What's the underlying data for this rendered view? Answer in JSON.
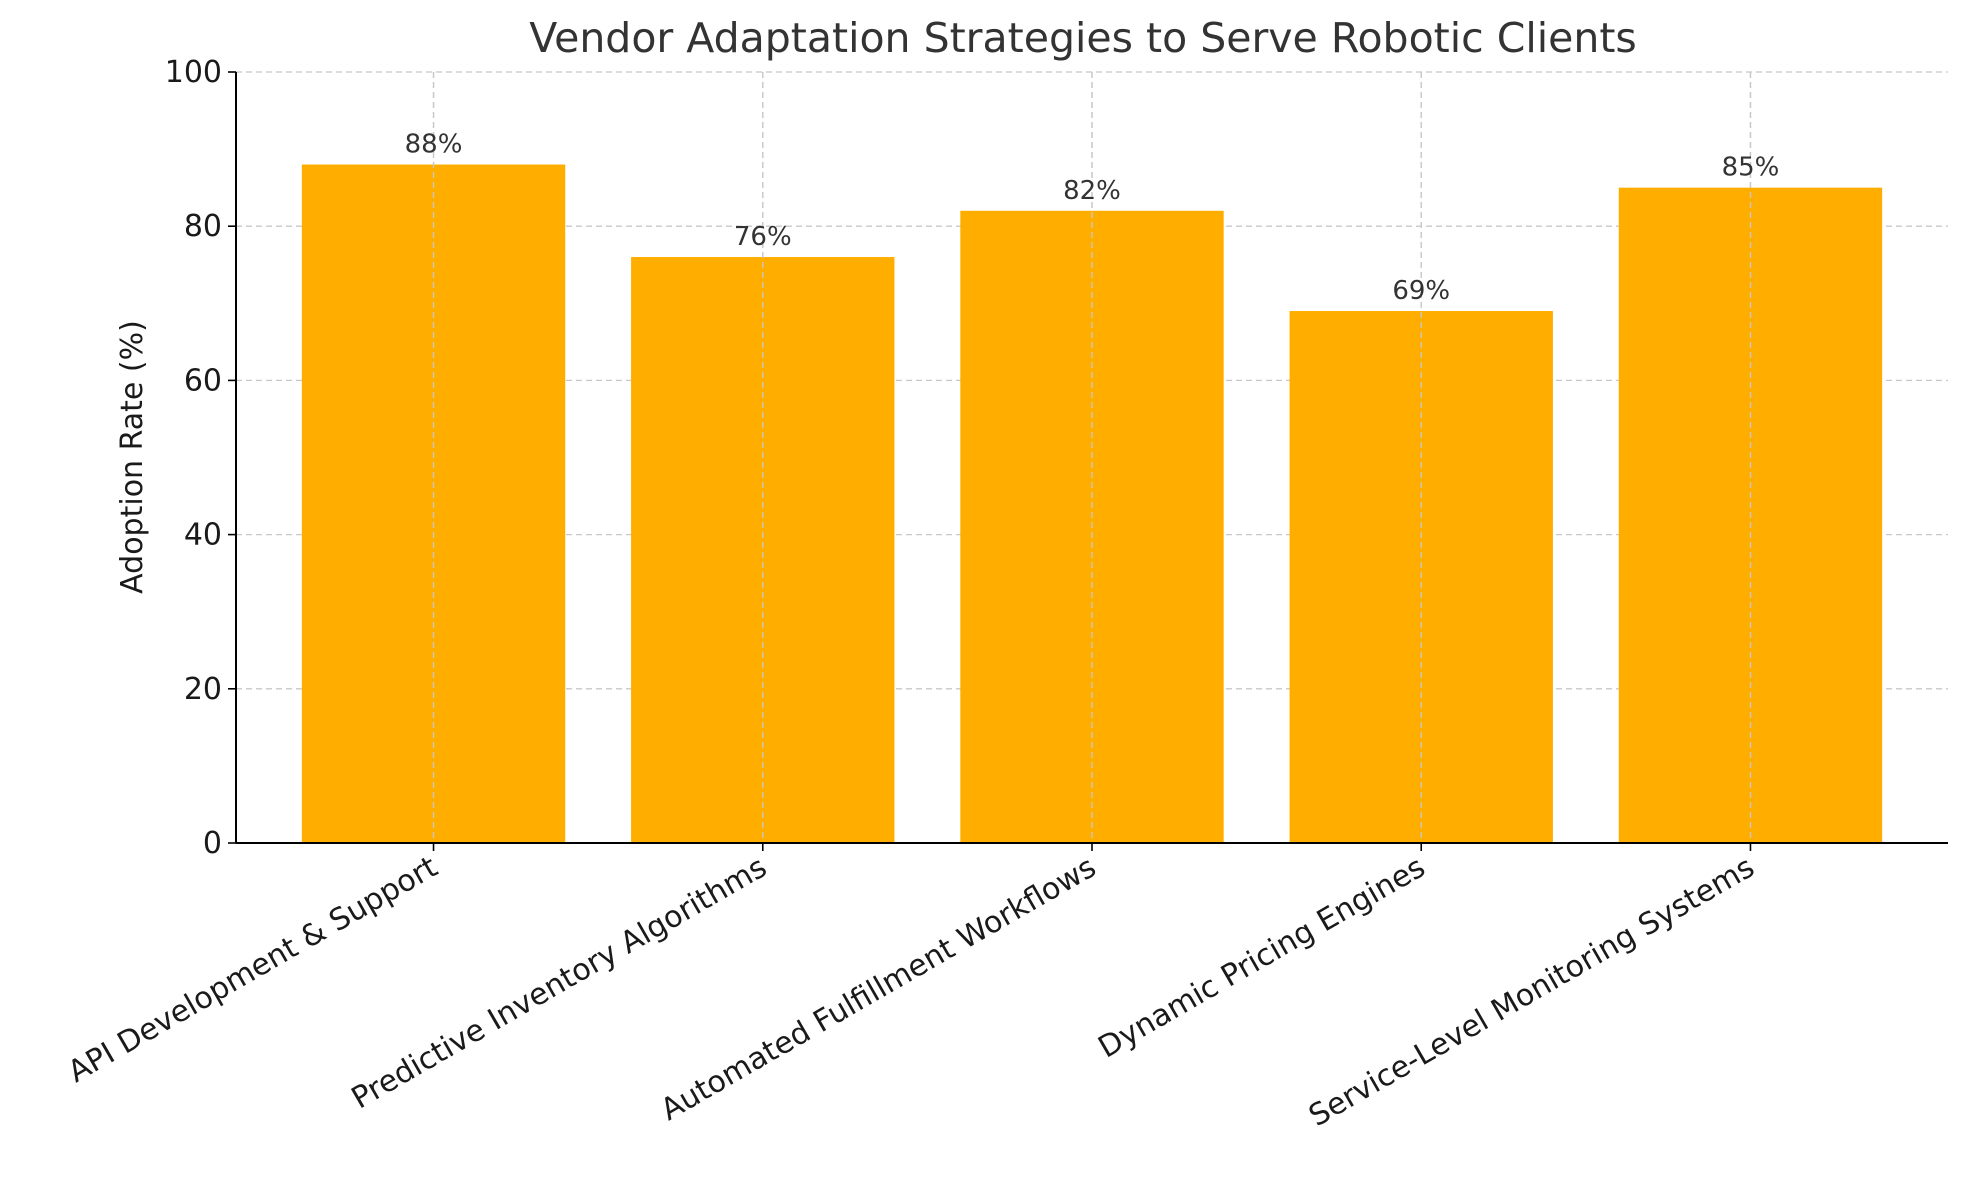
{
  "chart_data": {
    "type": "bar",
    "title": "Vendor Adaptation Strategies to Serve Robotic Clients",
    "xlabel": "",
    "ylabel": "Adoption Rate (%)",
    "categories": [
      "API Development & Support",
      "Predictive Inventory Algorithms",
      "Automated Fulfillment Workflows",
      "Dynamic Pricing Engines",
      "Service-Level Monitoring Systems"
    ],
    "values": [
      88,
      76,
      82,
      69,
      85
    ],
    "value_labels": [
      "88%",
      "76%",
      "82%",
      "69%",
      "85%"
    ],
    "ylim": [
      0,
      100
    ],
    "yticks": [
      0,
      20,
      40,
      60,
      80,
      100
    ],
    "ytick_labels": [
      "0",
      "20",
      "40",
      "60",
      "80",
      "100"
    ],
    "grid": true,
    "bar_color": "#FFAE00",
    "category_label_rotation_deg": -30
  }
}
